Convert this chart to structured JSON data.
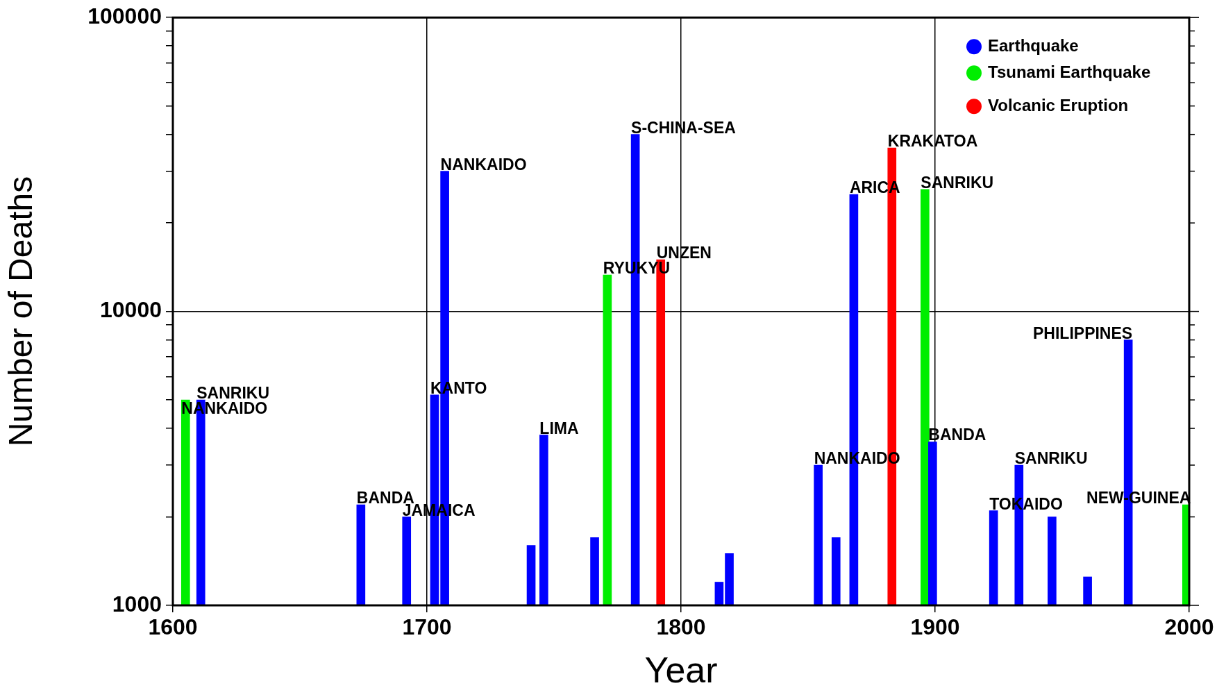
{
  "chart_data": {
    "type": "bar",
    "xlabel": "Year",
    "ylabel": "Number of Deaths",
    "log": "y",
    "grid": true,
    "legend": "top right",
    "xlim": [
      1600,
      2000
    ],
    "xticks": [
      1600,
      1700,
      1800,
      1900,
      2000
    ],
    "ylim": [
      1000,
      100000
    ],
    "yticks": [
      1000,
      {
        "value": 2000,
        "label": null
      },
      {
        "value": 3000,
        "label": null
      },
      {
        "value": 4000,
        "label": null
      },
      {
        "value": 5000,
        "label": null
      },
      {
        "value": 6000,
        "label": null
      },
      {
        "value": 7000,
        "label": null
      },
      {
        "value": 8000,
        "label": null
      },
      {
        "value": 9000,
        "label": null
      },
      10000,
      {
        "value": 20000,
        "label": null
      },
      {
        "value": 30000,
        "label": null
      },
      {
        "value": 40000,
        "label": null
      },
      {
        "value": 50000,
        "label": null
      },
      {
        "value": 60000,
        "label": null
      },
      {
        "value": 70000,
        "label": null
      },
      {
        "value": 80000,
        "label": null
      },
      {
        "value": 90000,
        "label": null
      },
      100000
    ],
    "series": [
      {
        "name": "Earthquake",
        "color": "#0000ff",
        "x": [
          1611,
          1674,
          1692,
          1703,
          1707,
          1741,
          1746,
          1766,
          1782,
          1815,
          1819,
          1854,
          1861,
          1868,
          1899,
          1923,
          1933,
          1946,
          1960,
          1976
        ],
        "values": [
          5000,
          2200,
          2000,
          5200,
          30000,
          1600,
          3800,
          1700,
          40000,
          1200,
          1500,
          3000,
          1700,
          25000,
          3600,
          2100,
          3000,
          2000,
          1250,
          8000
        ]
      },
      {
        "name": "Tsunami Earthquake",
        "color": "#00ee00",
        "x": [
          1605,
          1771,
          1896,
          1999
        ],
        "values": [
          5000,
          13300,
          26000,
          2200
        ]
      },
      {
        "name": "Volcanic Eruption",
        "color": "#ff0000",
        "x": [
          1792,
          1883
        ],
        "values": [
          15000,
          36000
        ]
      }
    ],
    "annotations": [
      {
        "text": "SANRIKU",
        "x": 1611,
        "y": 5000
      },
      {
        "text": "NANKAIDO",
        "x": 1605,
        "y": 5000
      },
      {
        "text": "BANDA",
        "x": 1674,
        "y": 2200
      },
      {
        "text": "JAMAICA",
        "x": 1692,
        "y": 2000
      },
      {
        "text": "KANTO",
        "x": 1703,
        "y": 5200
      },
      {
        "text": "NANKAIDO",
        "x": 1707,
        "y": 30000
      },
      {
        "text": "LIMA",
        "x": 1746,
        "y": 3800
      },
      {
        "text": "RYUKYU",
        "x": 1771,
        "y": 13300
      },
      {
        "text": "S-CHINA-SEA",
        "x": 1782,
        "y": 40000
      },
      {
        "text": "UNZEN",
        "x": 1792,
        "y": 15000
      },
      {
        "text": "NANKAIDO",
        "x": 1854,
        "y": 3000
      },
      {
        "text": "ARICA",
        "x": 1868,
        "y": 25000
      },
      {
        "text": "KRAKATOA",
        "x": 1883,
        "y": 36000
      },
      {
        "text": "SANRIKU",
        "x": 1896,
        "y": 26000
      },
      {
        "text": "BANDA",
        "x": 1899,
        "y": 3600
      },
      {
        "text": "SANRIKU",
        "x": 1933,
        "y": 3000
      },
      {
        "text": "TOKAIDO",
        "x": 1923,
        "y": 2100
      },
      {
        "text": "PHILIPPINES",
        "x": 1976,
        "y": 8000
      },
      {
        "text": "NEW-GUINEA",
        "x": 1999,
        "y": 2200
      }
    ]
  }
}
